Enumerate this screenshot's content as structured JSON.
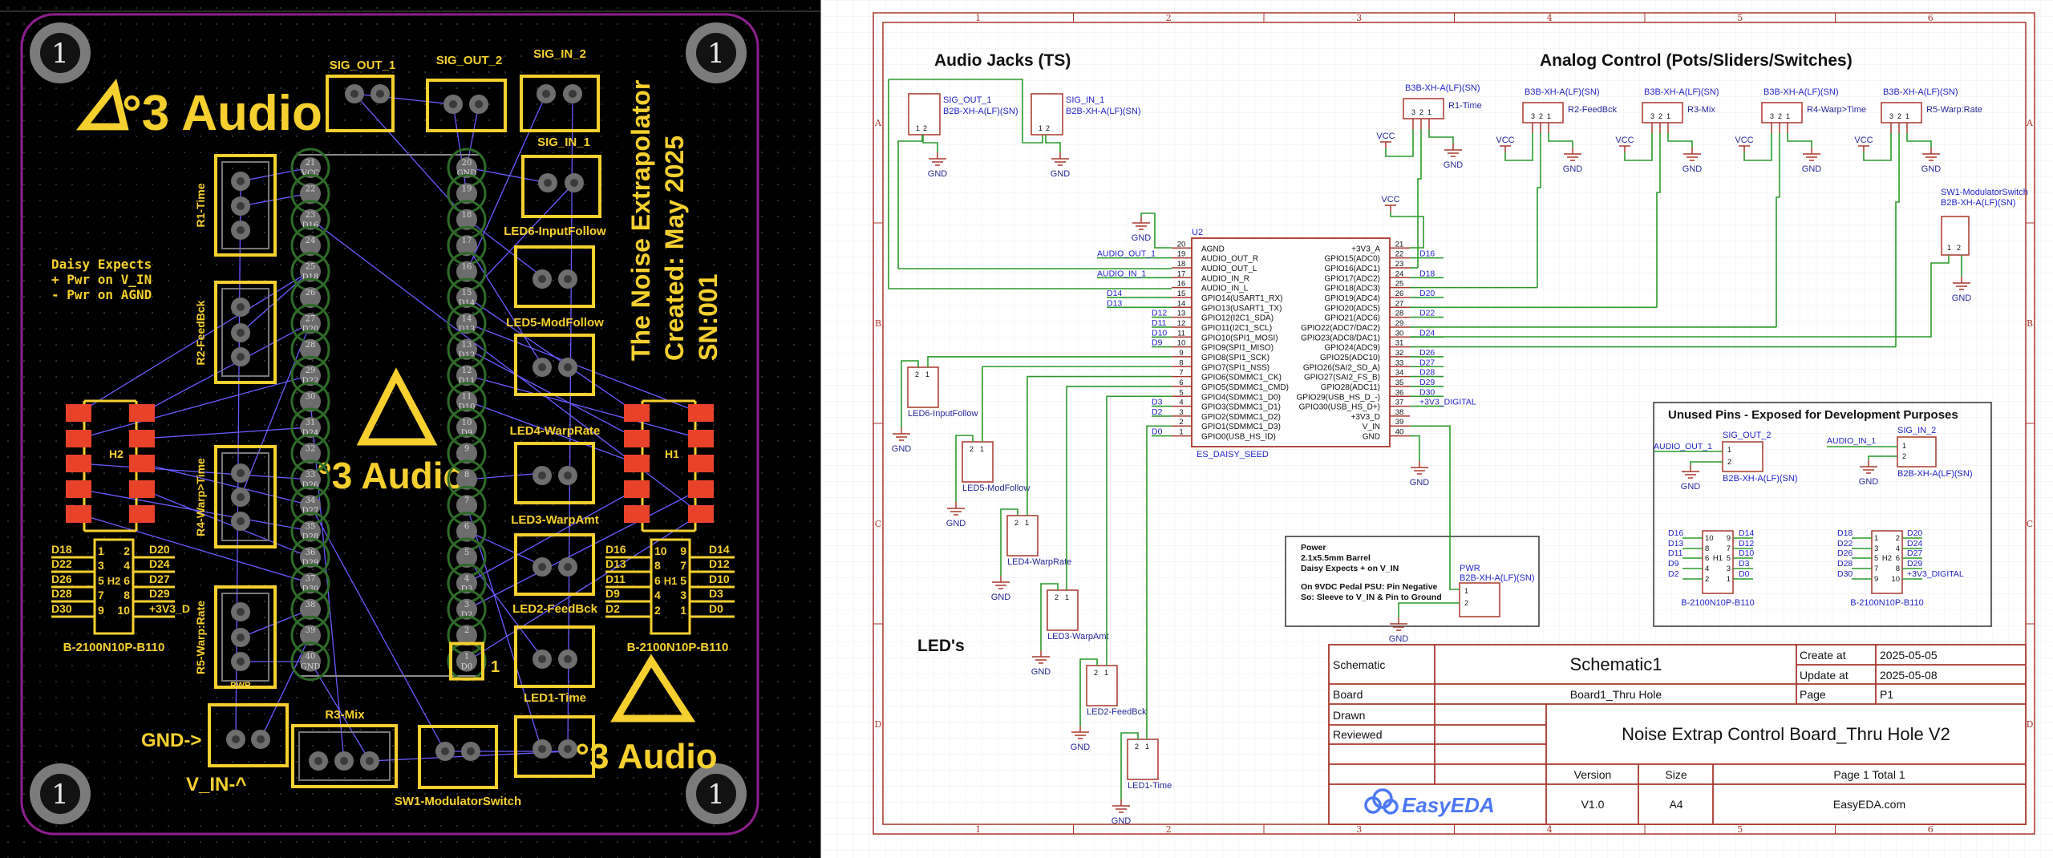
{
  "colors": {
    "pcb_background": "#000000",
    "board_outline": "#8e1f8e",
    "silkscreen": "#f6d02f",
    "pad": "#707070",
    "smd_pad": "#e8432a",
    "daisy_ring": "#2e6b28",
    "ratsnest": "#6a5cff",
    "schematic_frame": "#a8372c",
    "wire": "#2b9a2b",
    "net_label": "#2424c8",
    "easyeda_brand": "#4d78f5"
  },
  "pcb": {
    "mount_hole_label": "1",
    "logo_text": "°3 Audio",
    "connectors": {
      "sig_out_1": "SIG_OUT_1",
      "sig_out_2": "SIG_OUT_2",
      "sig_in_2": "SIG_IN_2",
      "sig_in_1": "SIG_IN_1"
    },
    "pots": {
      "r1": "R1-Time",
      "r2": "R2-FeedBck",
      "r4": "R4-Warp>Time",
      "r5": "R5-Warp:Rate",
      "r3": "R3-Mix"
    },
    "note_lines": [
      "Daisy Expects",
      "+ Pwr on V_IN",
      "- Pwr on AGND"
    ],
    "leds": [
      "LED6-InputFollow",
      "LED5-ModFollow",
      "LED4-WarpRate",
      "LED3-WarpAmt",
      "LED2-FeedBck",
      "LED1-Time"
    ],
    "title_lines": [
      "The Noise Extrapolator",
      "Created: May 2025",
      "SN:001"
    ],
    "daisy_left_pins": [
      "21",
      "22",
      "23",
      "24",
      "25",
      "26",
      "27",
      "28",
      "29",
      "30",
      "31",
      "32",
      "33",
      "34",
      "35",
      "36",
      "37",
      "38",
      "39",
      "40"
    ],
    "daisy_left_nets": [
      "VCC",
      "",
      "D16",
      "",
      "D18",
      "",
      "D20",
      "",
      "D22",
      "",
      "D24",
      "",
      "D26",
      "D27",
      "D28",
      "D29",
      "D30",
      "",
      "",
      "GND"
    ],
    "daisy_right_pins": [
      "20",
      "19",
      "18",
      "17",
      "16",
      "15",
      "14",
      "13",
      "12",
      "11",
      "10",
      "9",
      "8",
      "7",
      "6",
      "5",
      "4",
      "3",
      "2",
      "1"
    ],
    "daisy_right_nets": [
      "GND",
      "",
      "",
      "",
      "",
      "D14",
      "D13",
      "D12",
      "D11",
      "D10",
      "D9",
      "",
      "",
      "",
      "",
      "",
      "D3",
      "D2",
      "",
      "D0"
    ],
    "pin1_marker": "1",
    "h2": {
      "label": "H2",
      "left": [
        "D18",
        "D22",
        "D26",
        "D28",
        "D30"
      ],
      "right": [
        "D20",
        "D24",
        "D27",
        "D29",
        "+3V3_D"
      ],
      "left_pins": [
        "1",
        "3",
        "5",
        "7",
        "9"
      ],
      "right_pins": [
        "2",
        "4",
        "6",
        "8",
        "10"
      ],
      "part": "B-2100N10P-B110"
    },
    "h1": {
      "label": "H1",
      "left": [
        "D16",
        "D13",
        "D11",
        "D9",
        "D2"
      ],
      "right": [
        "D14",
        "D12",
        "D10",
        "D3",
        "D0"
      ],
      "left_pins": [
        "10",
        "8",
        "6",
        "4",
        "2"
      ],
      "right_pins": [
        "9",
        "7",
        "5",
        "3",
        "1"
      ],
      "part": "B-2100N10P-B110"
    },
    "gnd_arrow": "GND->",
    "vin_arrow": "V_IN-^",
    "pwr": "PWR",
    "sw1": "SW1-ModulatorSwitch"
  },
  "schematic": {
    "sections": {
      "audio": "Audio Jacks (TS)",
      "analog": "Analog Control (Pots/Sliders/Switches)",
      "leds": "LED's"
    },
    "grid": {
      "cols": [
        "1",
        "2",
        "3",
        "4",
        "5",
        "6"
      ],
      "rows": [
        "A",
        "B",
        "C",
        "D"
      ]
    },
    "gnd": "GND",
    "vcc": "VCC",
    "pin_nums": [
      "1",
      "2",
      "3"
    ],
    "jacks": [
      {
        "name": "SIG_OUT_1",
        "part": "B2B-XH-A(LF)(SN)"
      },
      {
        "name": "SIG_IN_1",
        "part": "B2B-XH-A(LF)(SN)"
      }
    ],
    "pots": [
      {
        "part": "B3B-XH-A(LF)(SN)",
        "name": "R1-Time"
      },
      {
        "part": "B3B-XH-A(LF)(SN)",
        "name": "R2-FeedBck"
      },
      {
        "part": "B3B-XH-A(LF)(SN)",
        "name": "R3-Mix"
      },
      {
        "part": "B3B-XH-A(LF)(SN)",
        "name": "R4-Warp>Time"
      },
      {
        "part": "B3B-XH-A(LF)(SN)",
        "name": "R5-Warp:Rate"
      }
    ],
    "switch": {
      "name": "SW1-ModulatorSwitch",
      "part": "B2B-XH-A(LF)(SN)"
    },
    "u2": {
      "ref": "U2",
      "part": "ES_DAISY_SEED",
      "left_pins": [
        {
          "num": "20",
          "name": "AGND",
          "net": ""
        },
        {
          "num": "19",
          "name": "AUDIO_OUT_R",
          "net": "AUDIO_OUT_1"
        },
        {
          "num": "18",
          "name": "AUDIO_OUT_L",
          "net": ""
        },
        {
          "num": "17",
          "name": "AUDIO_IN_R",
          "net": "AUDIO_IN_1"
        },
        {
          "num": "16",
          "name": "AUDIO_IN_L",
          "net": ""
        },
        {
          "num": "15",
          "name": "GPIO14(USART1_RX)",
          "net": "D14"
        },
        {
          "num": "14",
          "name": "GPIO13(USART1_TX)",
          "net": "D13"
        },
        {
          "num": "13",
          "name": "GPIO12(I2C1_SDA)",
          "net": "D12"
        },
        {
          "num": "12",
          "name": "GPIO11(I2C1_SCL)",
          "net": "D11"
        },
        {
          "num": "11",
          "name": "GPIO10(SPI1_MOSI)",
          "net": "D10"
        },
        {
          "num": "10",
          "name": "GPIO9(SPI1_MISO)",
          "net": "D9"
        },
        {
          "num": "9",
          "name": "GPIO8(SPI1_SCK)",
          "net": ""
        },
        {
          "num": "8",
          "name": "GPIO7(SPI1_NSS)",
          "net": ""
        },
        {
          "num": "7",
          "name": "GPIO6(SDMMC1_CK)",
          "net": ""
        },
        {
          "num": "6",
          "name": "GPIO5(SDMMC1_CMD)",
          "net": ""
        },
        {
          "num": "5",
          "name": "GPIO4(SDMMC1_D0)",
          "net": ""
        },
        {
          "num": "4",
          "name": "GPIO3(SDMMC1_D1)",
          "net": "D3"
        },
        {
          "num": "3",
          "name": "GPIO2(SDMMC1_D2)",
          "net": "D2"
        },
        {
          "num": "2",
          "name": "GPIO1(SDMMC1_D3)",
          "net": ""
        },
        {
          "num": "1",
          "name": "GPIO0(USB_HS_ID)",
          "net": "D0"
        }
      ],
      "right_pins": [
        {
          "num": "21",
          "name": "+3V3_A",
          "net": ""
        },
        {
          "num": "22",
          "name": "GPIO15(ADC0)",
          "net": "D16"
        },
        {
          "num": "23",
          "name": "GPIO16(ADC1)",
          "net": ""
        },
        {
          "num": "24",
          "name": "GPIO17(ADC2)",
          "net": "D18"
        },
        {
          "num": "25",
          "name": "GPIO18(ADC3)",
          "net": ""
        },
        {
          "num": "26",
          "name": "GPIO19(ADC4)",
          "net": "D20"
        },
        {
          "num": "27",
          "name": "GPIO20(ADC5)",
          "net": ""
        },
        {
          "num": "28",
          "name": "GPIO21(ADC6)",
          "net": "D22"
        },
        {
          "num": "29",
          "name": "GPIO22(ADC7/DAC2)",
          "net": ""
        },
        {
          "num": "30",
          "name": "GPIO23(ADC8/DAC1)",
          "net": "D24"
        },
        {
          "num": "31",
          "name": "GPIO24(ADC9)",
          "net": ""
        },
        {
          "num": "32",
          "name": "GPIO25(ADC10)",
          "net": "D26"
        },
        {
          "num": "33",
          "name": "GPIO26(SAI2_SD_A)",
          "net": "D27"
        },
        {
          "num": "34",
          "name": "GPIO27(SAI2_FS_B)",
          "net": "D28"
        },
        {
          "num": "35",
          "name": "GPIO28(ADC11)",
          "net": "D29"
        },
        {
          "num": "36",
          "name": "GPIO29(USB_HS_D_-)",
          "net": "D30"
        },
        {
          "num": "37",
          "name": "GPIO30(USB_HS_D+)",
          "net": "+3V3_DIGITAL"
        },
        {
          "num": "38",
          "name": "+3V3_D",
          "net": ""
        },
        {
          "num": "39",
          "name": "V_IN",
          "net": ""
        },
        {
          "num": "40",
          "name": "GND",
          "net": ""
        }
      ]
    },
    "leds": [
      "LED6-InputFollow",
      "LED5-ModFollow",
      "LED4-WarpRate",
      "LED3-WarpAmt",
      "LED2-FeedBck",
      "LED1-Time"
    ],
    "power": {
      "lines": [
        "Power",
        "2.1x5.5mm Barrel",
        "Daisy Expects + on V_IN",
        "On 9VDC Pedal PSU: Pin Negative",
        "So: Sleeve to V_IN & Pin to Ground"
      ],
      "ref": "PWR",
      "part": "B2B-XH-A(LF)(SN)"
    },
    "unused": {
      "title": "Unused Pins - Exposed for Development Purposes",
      "sig_out_2": {
        "name": "SIG_OUT_2",
        "part": "B2B-XH-A(LF)(SN)",
        "net": "AUDIO_OUT_1"
      },
      "sig_in_2": {
        "name": "SIG_IN_2",
        "part": "B2B-XH-A(LF)(SN)",
        "net": "AUDIO_IN_1"
      },
      "h1": {
        "label": "H1",
        "left": [
          "D16",
          "D13",
          "D11",
          "D9",
          "D2"
        ],
        "right": [
          "D14",
          "D12",
          "D10",
          "D3",
          "D0"
        ],
        "left_pins": [
          "10",
          "8",
          "6",
          "4",
          "2"
        ],
        "right_pins": [
          "9",
          "7",
          "5",
          "3",
          "1"
        ],
        "part": "B-2100N10P-B110"
      },
      "h2": {
        "label": "H2",
        "left": [
          "D18",
          "D22",
          "D26",
          "D28",
          "D30"
        ],
        "right": [
          "D20",
          "D24",
          "D27",
          "D29",
          "+3V3_DIGITAL"
        ],
        "left_pins": [
          "1",
          "3",
          "5",
          "7",
          "9"
        ],
        "right_pins": [
          "2",
          "4",
          "6",
          "8",
          "10"
        ],
        "part": "B-2100N10P-B110"
      }
    },
    "title_block": {
      "schematic_label": "Schematic",
      "schematic_value": "Schematic1",
      "create_label": "Create at",
      "create_value": "2025-05-05",
      "update_label": "Update at",
      "update_value": "2025-05-08",
      "board_label": "Board",
      "board_value": "Board1_Thru Hole",
      "page_label": "Page",
      "page_value": "P1",
      "drawn_label": "Drawn",
      "reviewed_label": "Reviewed",
      "project_title": "Noise Extrap Control Board_Thru Hole V2",
      "version_label": "Version",
      "size_label": "Size",
      "page_total": "Page  1  Total  1",
      "version_value": "V1.0",
      "size_value": "A4",
      "website": "EasyEDA.com",
      "logo_text": "EasyEDA"
    }
  }
}
